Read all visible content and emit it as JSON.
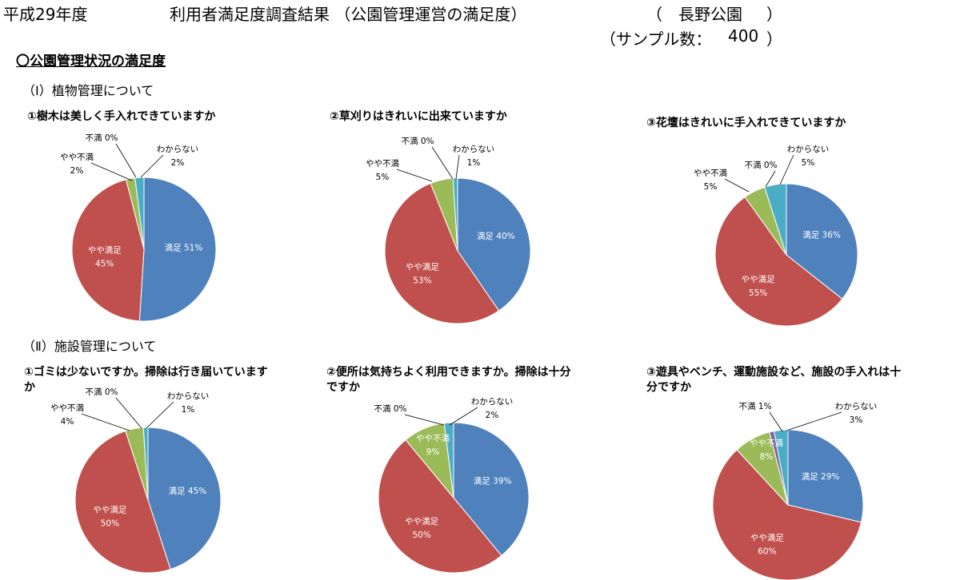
{
  "header": {
    "year": "平成29年度",
    "title": "利用者満足度調査結果 （公園管理運営の満足度）",
    "park_open": "（",
    "park": "長野公園",
    "park_close": "）",
    "sample_prefix": "（サンプル数：",
    "sample_value": "400",
    "sample_suffix": "）"
  },
  "section_title": "〇公園管理状況の満足度",
  "subsections": [
    {
      "label": "（Ⅰ）植物管理について"
    },
    {
      "label": "（Ⅱ）施設管理について"
    }
  ],
  "colors": {
    "満足": "#4f81bd",
    "やや満足": "#c0504d",
    "やや不満": "#9bbb59",
    "不満": "#8064a2",
    "わからない": "#4bacc6"
  },
  "chart_data": [
    {
      "type": "pie",
      "title": "①樹木は美しく手入れできていますか",
      "slices": [
        {
          "label": "満足",
          "value": 51,
          "value_label": "51%"
        },
        {
          "label": "やや満足",
          "value": 45,
          "value_label": "45%"
        },
        {
          "label": "やや不満",
          "value": 2,
          "value_label": "2%"
        },
        {
          "label": "不満",
          "value": 0,
          "value_label": "0%"
        },
        {
          "label": "わからない",
          "value": 2,
          "value_label": "2%"
        }
      ]
    },
    {
      "type": "pie",
      "title": "②草刈りはきれいに出来ていますか",
      "slices": [
        {
          "label": "満足",
          "value": 40,
          "value_label": "40%"
        },
        {
          "label": "やや満足",
          "value": 53,
          "value_label": "53%"
        },
        {
          "label": "やや不満",
          "value": 5,
          "value_label": "5%"
        },
        {
          "label": "不満",
          "value": 0,
          "value_label": "0%"
        },
        {
          "label": "わからない",
          "value": 1,
          "value_label": "1%"
        }
      ]
    },
    {
      "type": "pie",
      "title": "③花壇はきれいに手入れできていますか",
      "slices": [
        {
          "label": "満足",
          "value": 36,
          "value_label": "36%"
        },
        {
          "label": "やや満足",
          "value": 55,
          "value_label": "55%"
        },
        {
          "label": "やや不満",
          "value": 5,
          "value_label": "5%"
        },
        {
          "label": "不満",
          "value": 0,
          "value_label": "0%"
        },
        {
          "label": "わからない",
          "value": 5,
          "value_label": "5%"
        }
      ]
    },
    {
      "type": "pie",
      "title": "①ゴミは少ないですか。掃除は行き届いていますか",
      "slices": [
        {
          "label": "満足",
          "value": 45,
          "value_label": "45%"
        },
        {
          "label": "やや満足",
          "value": 50,
          "value_label": "50%"
        },
        {
          "label": "やや不満",
          "value": 4,
          "value_label": "4%"
        },
        {
          "label": "不満",
          "value": 0,
          "value_label": "0%"
        },
        {
          "label": "わからない",
          "value": 1,
          "value_label": "1%"
        }
      ]
    },
    {
      "type": "pie",
      "title": "②便所は気持ちよく利用できますか。掃除は十分ですか",
      "slices": [
        {
          "label": "満足",
          "value": 39,
          "value_label": "39%"
        },
        {
          "label": "やや満足",
          "value": 50,
          "value_label": "50%"
        },
        {
          "label": "やや不満",
          "value": 9,
          "value_label": "9%"
        },
        {
          "label": "不満",
          "value": 0,
          "value_label": "0%"
        },
        {
          "label": "わからない",
          "value": 2,
          "value_label": "2%"
        }
      ]
    },
    {
      "type": "pie",
      "title": "③遊具やベンチ、運動施設など、施設の手入れは十分ですか",
      "slices": [
        {
          "label": "満足",
          "value": 29,
          "value_label": "29%"
        },
        {
          "label": "やや満足",
          "value": 60,
          "value_label": "60%"
        },
        {
          "label": "やや不満",
          "value": 8,
          "value_label": "8%"
        },
        {
          "label": "不満",
          "value": 1,
          "value_label": "1%"
        },
        {
          "label": "わからない",
          "value": 3,
          "value_label": "3%"
        }
      ]
    }
  ]
}
